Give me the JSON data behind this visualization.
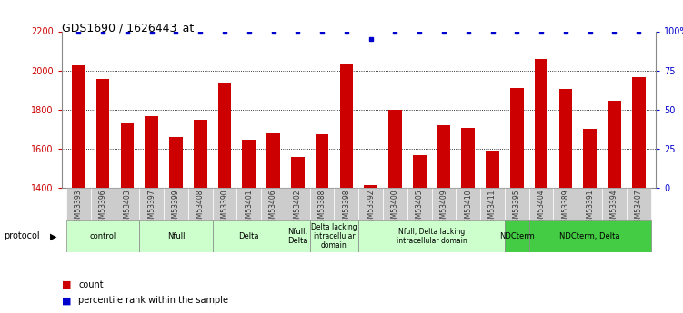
{
  "title": "GDS1690 / 1626443_at",
  "samples": [
    "GSM53393",
    "GSM53396",
    "GSM53403",
    "GSM53397",
    "GSM53399",
    "GSM53408",
    "GSM53390",
    "GSM53401",
    "GSM53406",
    "GSM53402",
    "GSM53388",
    "GSM53398",
    "GSM53392",
    "GSM53400",
    "GSM53405",
    "GSM53409",
    "GSM53410",
    "GSM53411",
    "GSM53395",
    "GSM53404",
    "GSM53389",
    "GSM53391",
    "GSM53394",
    "GSM53407"
  ],
  "counts": [
    2025,
    1955,
    1730,
    1765,
    1660,
    1750,
    1940,
    1645,
    1680,
    1560,
    1675,
    2035,
    1415,
    1800,
    1565,
    1720,
    1705,
    1590,
    1910,
    2060,
    1905,
    1700,
    1845,
    1965
  ],
  "percentile_ranks": [
    100,
    100,
    100,
    100,
    100,
    100,
    100,
    100,
    100,
    100,
    100,
    100,
    95,
    100,
    100,
    100,
    100,
    100,
    100,
    100,
    100,
    100,
    100,
    100
  ],
  "bar_color": "#cc0000",
  "dot_color": "#0000cc",
  "ylim_left": [
    1400,
    2200
  ],
  "ylim_right": [
    0,
    100
  ],
  "yticks_left": [
    1400,
    1600,
    1800,
    2000,
    2200
  ],
  "yticks_right": [
    0,
    25,
    50,
    75,
    100
  ],
  "groups": [
    {
      "label": "control",
      "start": 0,
      "end": 2,
      "color": "#ccffcc"
    },
    {
      "label": "Nfull",
      "start": 3,
      "end": 5,
      "color": "#ccffcc"
    },
    {
      "label": "Delta",
      "start": 6,
      "end": 8,
      "color": "#ccffcc"
    },
    {
      "label": "Nfull,\nDelta",
      "start": 9,
      "end": 9,
      "color": "#ccffcc"
    },
    {
      "label": "Delta lacking\nintracellular\ndomain",
      "start": 10,
      "end": 11,
      "color": "#ccffcc"
    },
    {
      "label": "Nfull, Delta lacking\nintracellular domain",
      "start": 12,
      "end": 17,
      "color": "#ccffcc"
    },
    {
      "label": "NDCterm",
      "start": 18,
      "end": 18,
      "color": "#44cc44"
    },
    {
      "label": "NDCterm, Delta",
      "start": 19,
      "end": 23,
      "color": "#44cc44"
    }
  ],
  "protocol_label": "protocol",
  "dotted_gridlines": [
    1600,
    1800,
    2000
  ],
  "bar_width": 0.55,
  "bg_color": "#ffffff",
  "tick_label_bg": "#cccccc",
  "tick_label_fg": "#333333",
  "spine_color": "#888888"
}
